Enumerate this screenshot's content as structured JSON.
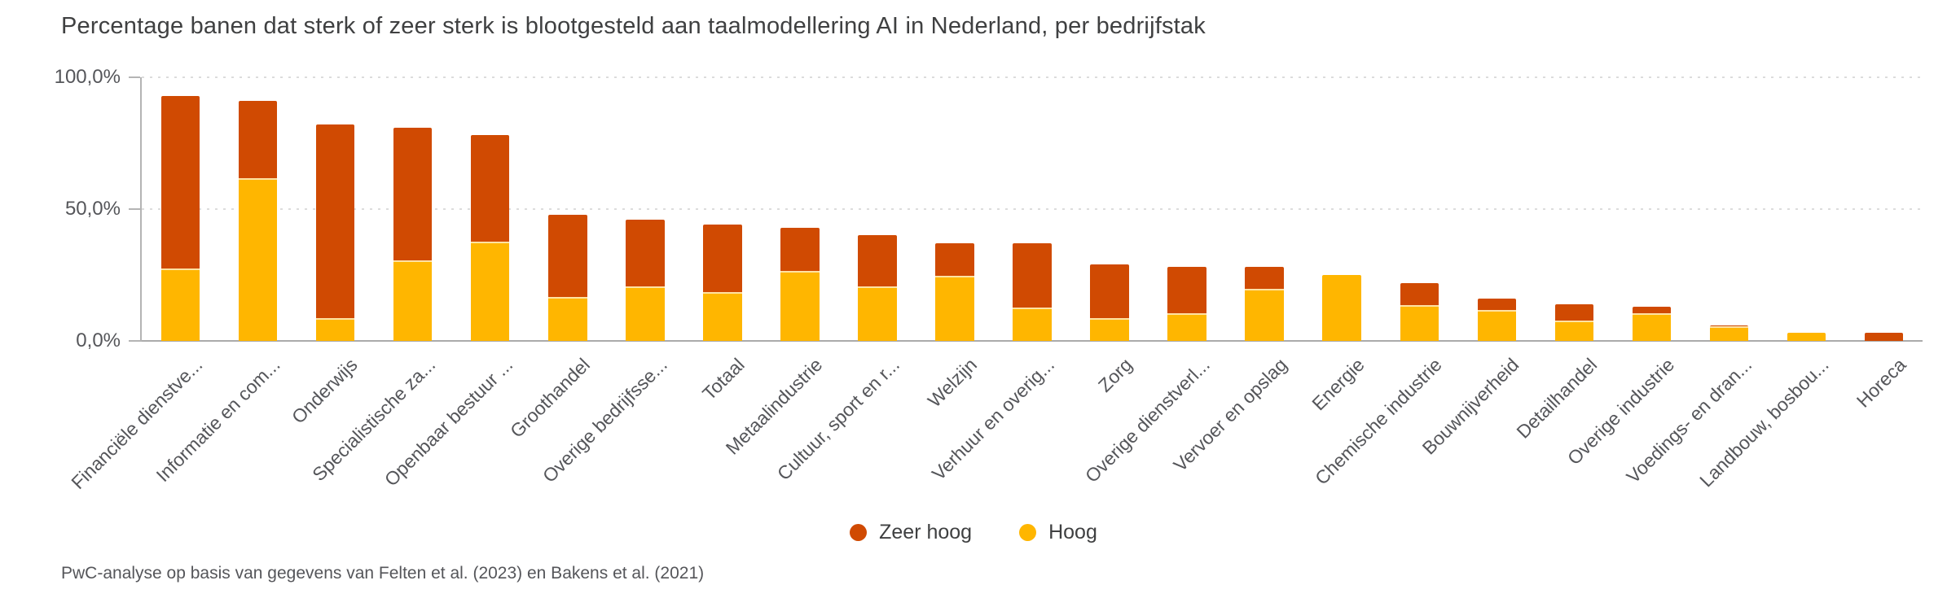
{
  "title": "Percentage banen dat sterk of zeer sterk is blootgesteld aan taalmodellering AI in Nederland, per bedrijfstak",
  "footer": "PwC-analyse op basis van gegevens van Felten et al. (2023) en Bakens et al. (2021)",
  "colors": {
    "zeer_hoog": "#D04A02",
    "hoog": "#FFB600",
    "segment_divider": "#FFE2A3",
    "axis_line": "#b4b4b4",
    "gridline": "#dcdcdc",
    "text_dark": "#3f4041",
    "text_gray": "#55565a"
  },
  "legend": [
    {
      "label": "Zeer hoog",
      "color": "#D04A02"
    },
    {
      "label": "Hoog",
      "color": "#FFB600"
    }
  ],
  "y_axis": {
    "tick_labels": [
      "100,0%",
      "50,0%",
      "0,0%"
    ],
    "tick_values": [
      100,
      50,
      0
    ]
  },
  "chart_data": {
    "type": "bar",
    "stacked": true,
    "unit": "percent",
    "title": "Percentage banen dat sterk of zeer sterk is blootgesteld aan taalmodellering AI in Nederland, per bedrijfstak",
    "xlabel": "",
    "ylabel": "",
    "ylim": [
      0,
      100
    ],
    "y_tick_values": [
      0,
      50,
      100
    ],
    "y_tick_labels": [
      "0,0%",
      "50,0%",
      "100,0%"
    ],
    "grid": "dotted horizontal gridlines at 50% and 100%, solid baseline at 0%",
    "legend_position": "bottom-center",
    "categories": [
      "Financiële dienstve...",
      "Informatie en com...",
      "Onderwijs",
      "Specialistische za...",
      "Openbaar bestuur ...",
      "Groothandel",
      "Overige bedrijfsse...",
      "Totaal",
      "Metaalindustrie",
      "Cultuur, sport en r...",
      "Welzijn",
      "Verhuur en overig...",
      "Zorg",
      "Overige dienstverl...",
      "Vervoer en opslag",
      "Energie",
      "Chemische industrie",
      "Bouwnijverheid",
      "Detailhandel",
      "Overige industrie",
      "Voedings- en dran...",
      "Landbouw, bosbou...",
      "Horeca"
    ],
    "series": [
      {
        "name": "Zeer hoog",
        "color": "#D04A02",
        "values": [
          66,
          30,
          74,
          51,
          41,
          32,
          26,
          26,
          17,
          20,
          13,
          25,
          21,
          18,
          9,
          0,
          9,
          5,
          7,
          3,
          1,
          0,
          3
        ]
      },
      {
        "name": "Hoog",
        "color": "#FFB600",
        "values": [
          27,
          61,
          8,
          30,
          37,
          16,
          20,
          18,
          26,
          20,
          24,
          12,
          8,
          10,
          19,
          25,
          13,
          11,
          7,
          10,
          5,
          3,
          0
        ]
      }
    ],
    "totals": [
      93,
      91,
      82,
      81,
      78,
      48,
      46,
      44,
      43,
      40,
      37,
      37,
      29,
      28,
      28,
      25,
      22,
      16,
      14,
      13,
      6,
      3,
      3
    ]
  }
}
